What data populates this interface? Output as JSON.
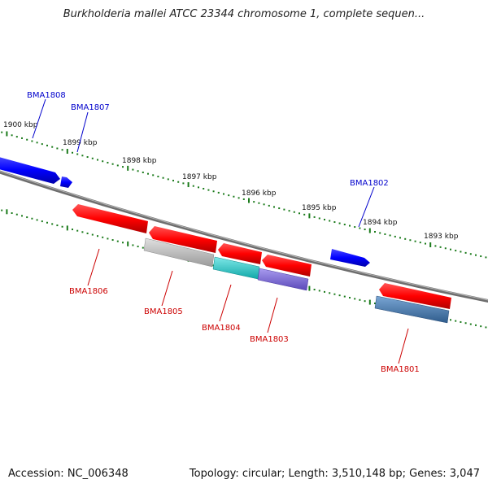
{
  "header": {
    "title": "Burkholderia mallei ATCC 23344 chromosome 1, complete sequen..."
  },
  "footer": {
    "accession": "Accession: NC_006348",
    "topology": "Topology: circular; Length: 3,510,148 bp; Genes: 3,047"
  },
  "scale": {
    "ticks": [
      "1900 kbp",
      "1899 kbp",
      "1898 kbp",
      "1897 kbp",
      "1896 kbp",
      "1895 kbp",
      "1894 kbp",
      "1893 kbp"
    ]
  },
  "genes": {
    "forward": [
      {
        "name": "BMA1808",
        "color": "#0000cc"
      },
      {
        "name": "BMA1807",
        "color": "#0000cc"
      },
      {
        "name": "BMA1802",
        "color": "#0000cc"
      }
    ],
    "reverse": [
      {
        "name": "BMA1806",
        "color": "#cc0000"
      },
      {
        "name": "BMA1805",
        "color": "#cc0000"
      },
      {
        "name": "BMA1804",
        "color": "#cc0000"
      },
      {
        "name": "BMA1803",
        "color": "#cc0000"
      },
      {
        "name": "BMA1801",
        "color": "#cc0000"
      }
    ]
  },
  "colors": {
    "backbone": "#777777",
    "tick_dots": "#1a7a1a",
    "forward_gene": "#0000ff",
    "reverse_gene": "#ff0000",
    "rna_gray": "#bdbdbd",
    "rna_cyan": "#20c0c0",
    "rna_purple": "#7766cc",
    "rna_steel": "#4477aa"
  }
}
